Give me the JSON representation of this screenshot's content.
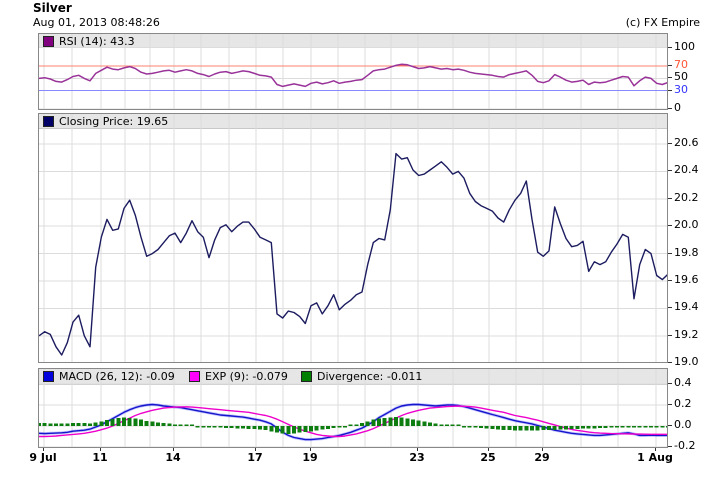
{
  "header": {
    "title": "Silver",
    "timestamp": "Aug 01, 2013 08:48:26",
    "copyright": "(c) FX Empire"
  },
  "panels": {
    "rsi": {
      "legend": {
        "label": "RSI (14): 43.3",
        "color": "#800080"
      }
    },
    "price": {
      "legend": {
        "label": "Closing Price: 19.65",
        "color": "#000066"
      }
    },
    "macd": {
      "legend": [
        {
          "label": "MACD (26, 12): -0.09",
          "color": "#0000dd"
        },
        {
          "label": "EXP (9): -0.079",
          "color": "#ff00ff"
        },
        {
          "label": "Divergence: -0.011",
          "color": "#008000"
        }
      ]
    }
  },
  "x_axis": {
    "ticks": [
      {
        "label": "9 Jul",
        "pos": 0.008
      },
      {
        "label": "11",
        "pos": 0.0986
      },
      {
        "label": "14",
        "pos": 0.2146
      },
      {
        "label": "17",
        "pos": 0.345
      },
      {
        "label": "19",
        "pos": 0.4324
      },
      {
        "label": "23",
        "pos": 0.6026
      },
      {
        "label": "25",
        "pos": 0.7154
      },
      {
        "label": "29",
        "pos": 0.8013
      },
      {
        "label": "1 Aug",
        "pos": 0.9809
      }
    ],
    "gridlines": [
      0.008,
      0.0525,
      0.0986,
      0.1367,
      0.1765,
      0.2146,
      0.2576,
      0.3021,
      0.345,
      0.3879,
      0.4324,
      0.4753,
      0.5183,
      0.5596,
      0.6026,
      0.6582,
      0.7154,
      0.7583,
      0.8013,
      0.8617,
      0.9205,
      0.9809
    ]
  },
  "chart_data": [
    {
      "panel": "rsi",
      "type": "line",
      "title": "RSI (14)",
      "current": 43.3,
      "ylim": [
        0,
        100
      ],
      "overbought": 70,
      "oversold": 30,
      "overbought_line_color": "#ff8070",
      "oversold_line_color": "#8888ff",
      "overbought_fill_color": "#ee4444",
      "yticks": [
        {
          "v": 100,
          "label": "100",
          "label_color": "#000000",
          "grid_color": "#dcdcdc"
        },
        {
          "v": 70,
          "label": "70",
          "label_color": "#ff5533",
          "grid_color": "#ff8070"
        },
        {
          "v": 50,
          "label": "50",
          "label_color": "#000000",
          "grid_color": "#dcdcdc"
        },
        {
          "v": 30,
          "label": "30",
          "label_color": "#3333ff",
          "grid_color": "#8888ff"
        },
        {
          "v": 0,
          "label": "0",
          "label_color": "#000000",
          "grid_color": "#dcdcdc"
        }
      ],
      "series": [
        {
          "name": "RSI (14)",
          "color": "#993399",
          "width": 1.5,
          "values": [
            50,
            51,
            49,
            45,
            44,
            48,
            53,
            55,
            50,
            46,
            58,
            63,
            68,
            65,
            64,
            67,
            69,
            66,
            60,
            57,
            58,
            60,
            62,
            63,
            60,
            62,
            64,
            62,
            58,
            56,
            53,
            57,
            60,
            61,
            58,
            60,
            62,
            61,
            58,
            55,
            54,
            52,
            40,
            37,
            39,
            41,
            39,
            37,
            42,
            44,
            41,
            43,
            46,
            42,
            44,
            45,
            47,
            48,
            55,
            62,
            64,
            65,
            68,
            71,
            73,
            72,
            69,
            66,
            67,
            69,
            67,
            65,
            66,
            64,
            65,
            63,
            60,
            58,
            57,
            56,
            55,
            53,
            52,
            56,
            58,
            60,
            62,
            55,
            45,
            43,
            46,
            56,
            52,
            47,
            44,
            45,
            47,
            40,
            44,
            43,
            44,
            47,
            50,
            53,
            52,
            38,
            46,
            52,
            50,
            42,
            40,
            43.3
          ]
        }
      ]
    },
    {
      "panel": "price",
      "type": "line",
      "title": "Closing Price",
      "current": 19.65,
      "ylim": [
        19.0,
        20.6
      ],
      "yticks": [
        {
          "v": 20.6,
          "label": "20.6",
          "label_color": "#000000",
          "grid_color": "#dcdcdc"
        },
        {
          "v": 20.4,
          "label": "20.4",
          "label_color": "#000000",
          "grid_color": "#dcdcdc"
        },
        {
          "v": 20.2,
          "label": "20.2",
          "label_color": "#000000",
          "grid_color": "#dcdcdc"
        },
        {
          "v": 20.0,
          "label": "20.0",
          "label_color": "#000000",
          "grid_color": "#dcdcdc"
        },
        {
          "v": 19.8,
          "label": "19.8",
          "label_color": "#000000",
          "grid_color": "#dcdcdc"
        },
        {
          "v": 19.6,
          "label": "19.6",
          "label_color": "#000000",
          "grid_color": "#dcdcdc"
        },
        {
          "v": 19.4,
          "label": "19.4",
          "label_color": "#000000",
          "grid_color": "#dcdcdc"
        },
        {
          "v": 19.2,
          "label": "19.2",
          "label_color": "#000000",
          "grid_color": "#dcdcdc"
        },
        {
          "v": 19.0,
          "label": "19.0",
          "label_color": "#000000",
          "grid_color": "#dcdcdc"
        }
      ],
      "series": [
        {
          "name": "Closing Price",
          "color": "#1c1c60",
          "width": 1.4,
          "values": [
            19.2,
            19.23,
            19.21,
            19.12,
            19.06,
            19.15,
            19.3,
            19.35,
            19.2,
            19.12,
            19.7,
            19.92,
            20.05,
            19.97,
            19.98,
            20.13,
            20.19,
            20.08,
            19.92,
            19.78,
            19.8,
            19.83,
            19.88,
            19.93,
            19.95,
            19.88,
            19.95,
            20.04,
            19.96,
            19.92,
            19.77,
            19.9,
            19.99,
            20.01,
            19.96,
            20.0,
            20.03,
            20.03,
            19.98,
            19.92,
            19.9,
            19.88,
            19.36,
            19.33,
            19.38,
            19.37,
            19.34,
            19.29,
            19.42,
            19.44,
            19.36,
            19.42,
            19.5,
            19.39,
            19.43,
            19.46,
            19.5,
            19.52,
            19.72,
            19.88,
            19.91,
            19.9,
            20.12,
            20.53,
            20.49,
            20.5,
            20.41,
            20.37,
            20.38,
            20.41,
            20.44,
            20.47,
            20.43,
            20.38,
            20.4,
            20.35,
            20.24,
            20.18,
            20.15,
            20.13,
            20.11,
            20.06,
            20.03,
            20.12,
            20.19,
            20.24,
            20.33,
            20.05,
            19.81,
            19.78,
            19.82,
            20.14,
            20.02,
            19.91,
            19.85,
            19.86,
            19.89,
            19.67,
            19.74,
            19.72,
            19.74,
            19.81,
            19.87,
            19.94,
            19.92,
            19.47,
            19.72,
            19.83,
            19.8,
            19.64,
            19.61,
            19.65
          ]
        }
      ]
    },
    {
      "panel": "macd",
      "type": "line+bar",
      "title": "MACD (26, 12) / EXP (9) / Divergence",
      "current": {
        "macd": -0.09,
        "exp": -0.079,
        "divergence": -0.011
      },
      "ylim": [
        -0.2,
        0.4
      ],
      "yticks": [
        {
          "v": 0.4,
          "label": "0.4",
          "label_color": "#000000",
          "grid_color": "#dcdcdc"
        },
        {
          "v": 0.2,
          "label": "0.2",
          "label_color": "#000000",
          "grid_color": "#dcdcdc"
        },
        {
          "v": 0.0,
          "label": "0.0",
          "label_color": "#000000",
          "grid_color": "#dcdcdc"
        },
        {
          "v": -0.2,
          "label": "-0.2",
          "label_color": "#000000",
          "grid_color": "#dcdcdc"
        }
      ],
      "series": [
        {
          "name": "MACD (26, 12)",
          "color": "#1515cc",
          "width": 1.4,
          "halo": "rgba(90,90,255,0.35)",
          "values": [
            -0.07,
            -0.072,
            -0.07,
            -0.068,
            -0.065,
            -0.06,
            -0.05,
            -0.045,
            -0.04,
            -0.03,
            -0.01,
            0.01,
            0.04,
            0.07,
            0.1,
            0.13,
            0.155,
            0.175,
            0.19,
            0.2,
            0.205,
            0.2,
            0.19,
            0.185,
            0.18,
            0.175,
            0.165,
            0.155,
            0.145,
            0.135,
            0.125,
            0.115,
            0.105,
            0.1,
            0.095,
            0.09,
            0.085,
            0.075,
            0.065,
            0.055,
            0.04,
            0.02,
            -0.02,
            -0.06,
            -0.09,
            -0.11,
            -0.12,
            -0.13,
            -0.13,
            -0.125,
            -0.12,
            -0.11,
            -0.1,
            -0.09,
            -0.075,
            -0.06,
            -0.04,
            -0.02,
            0.01,
            0.04,
            0.08,
            0.11,
            0.14,
            0.17,
            0.19,
            0.2,
            0.205,
            0.205,
            0.2,
            0.195,
            0.19,
            0.195,
            0.2,
            0.2,
            0.195,
            0.185,
            0.17,
            0.155,
            0.14,
            0.125,
            0.11,
            0.095,
            0.08,
            0.065,
            0.05,
            0.04,
            0.03,
            0.02,
            0.005,
            -0.01,
            -0.025,
            -0.04,
            -0.05,
            -0.06,
            -0.07,
            -0.075,
            -0.08,
            -0.085,
            -0.09,
            -0.09,
            -0.085,
            -0.08,
            -0.075,
            -0.07,
            -0.065,
            -0.075,
            -0.09,
            -0.09,
            -0.088,
            -0.09,
            -0.09,
            -0.09
          ]
        },
        {
          "name": "EXP (9)",
          "color": "#ee00cc",
          "width": 1.4,
          "values": [
            -0.1,
            -0.1,
            -0.098,
            -0.095,
            -0.09,
            -0.085,
            -0.08,
            -0.075,
            -0.07,
            -0.06,
            -0.05,
            -0.035,
            -0.02,
            0.0,
            0.025,
            0.05,
            0.075,
            0.1,
            0.12,
            0.135,
            0.15,
            0.16,
            0.17,
            0.175,
            0.18,
            0.182,
            0.183,
            0.18,
            0.175,
            0.17,
            0.165,
            0.16,
            0.155,
            0.15,
            0.145,
            0.14,
            0.135,
            0.13,
            0.12,
            0.11,
            0.1,
            0.085,
            0.065,
            0.04,
            0.015,
            -0.01,
            -0.03,
            -0.05,
            -0.065,
            -0.08,
            -0.09,
            -0.095,
            -0.1,
            -0.1,
            -0.095,
            -0.085,
            -0.075,
            -0.06,
            -0.045,
            -0.025,
            0.0,
            0.025,
            0.05,
            0.075,
            0.1,
            0.12,
            0.135,
            0.15,
            0.16,
            0.17,
            0.175,
            0.18,
            0.185,
            0.188,
            0.19,
            0.188,
            0.185,
            0.18,
            0.17,
            0.16,
            0.15,
            0.14,
            0.13,
            0.115,
            0.1,
            0.09,
            0.08,
            0.068,
            0.055,
            0.04,
            0.025,
            0.01,
            -0.005,
            -0.02,
            -0.032,
            -0.042,
            -0.05,
            -0.058,
            -0.064,
            -0.068,
            -0.07,
            -0.072,
            -0.073,
            -0.074,
            -0.075,
            -0.076,
            -0.077,
            -0.078,
            -0.079,
            -0.079,
            -0.079,
            -0.079
          ]
        }
      ],
      "bars": {
        "name": "Divergence",
        "color": "#0e7d10",
        "values": [
          0.03,
          0.028,
          0.026,
          0.025,
          0.024,
          0.026,
          0.028,
          0.03,
          0.028,
          0.026,
          0.035,
          0.045,
          0.055,
          0.065,
          0.075,
          0.08,
          0.078,
          0.07,
          0.06,
          0.05,
          0.042,
          0.035,
          0.028,
          0.022,
          0.015,
          0.01,
          0.005,
          0.0,
          -0.005,
          -0.008,
          -0.01,
          -0.012,
          -0.015,
          -0.018,
          -0.02,
          -0.022,
          -0.025,
          -0.028,
          -0.03,
          -0.035,
          -0.04,
          -0.05,
          -0.06,
          -0.07,
          -0.075,
          -0.07,
          -0.06,
          -0.055,
          -0.05,
          -0.042,
          -0.035,
          -0.028,
          -0.02,
          -0.012,
          -0.005,
          0.005,
          0.015,
          0.03,
          0.045,
          0.06,
          0.07,
          0.078,
          0.082,
          0.085,
          0.08,
          0.072,
          0.062,
          0.052,
          0.042,
          0.032,
          0.022,
          0.015,
          0.01,
          0.006,
          0.002,
          -0.002,
          -0.008,
          -0.014,
          -0.02,
          -0.025,
          -0.03,
          -0.034,
          -0.038,
          -0.04,
          -0.042,
          -0.044,
          -0.045,
          -0.044,
          -0.042,
          -0.04,
          -0.038,
          -0.036,
          -0.034,
          -0.032,
          -0.03,
          -0.028,
          -0.026,
          -0.024,
          -0.022,
          -0.02,
          -0.018,
          -0.016,
          -0.014,
          -0.013,
          -0.012,
          -0.014,
          -0.016,
          -0.014,
          -0.012,
          -0.012,
          -0.011,
          -0.011
        ]
      }
    }
  ]
}
